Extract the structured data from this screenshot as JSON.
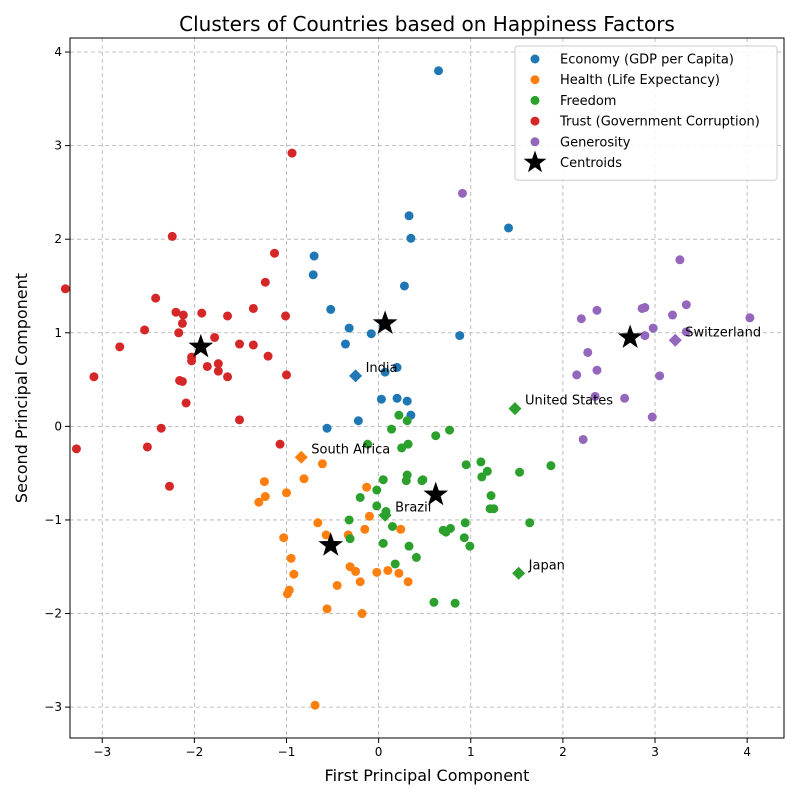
{
  "chart_data": {
    "type": "scatter",
    "title": "Clusters of Countries based on Happiness Factors",
    "xlabel": "First Principal Component",
    "ylabel": "Second Principal Component",
    "xlim": [
      -3.35,
      4.4
    ],
    "ylim": [
      -3.33,
      4.15
    ],
    "xticks": [
      -3,
      -2,
      -1,
      0,
      1,
      2,
      3,
      4
    ],
    "yticks": [
      -3,
      -2,
      -1,
      0,
      1,
      2,
      3,
      4
    ],
    "xtick_labels": [
      "−3",
      "−2",
      "−1",
      "0",
      "1",
      "2",
      "3",
      "4"
    ],
    "ytick_labels": [
      "−3",
      "−2",
      "−1",
      "0",
      "1",
      "2",
      "3",
      "4"
    ],
    "grid": true,
    "legend_position": "top-right",
    "series": [
      {
        "name": "Economy (GDP per Capita)",
        "color": "#1f77b4",
        "points": [
          [
            0.65,
            3.8
          ],
          [
            1.41,
            2.12
          ],
          [
            0.33,
            2.25
          ],
          [
            0.35,
            2.01
          ],
          [
            -0.7,
            1.82
          ],
          [
            -0.71,
            1.62
          ],
          [
            0.28,
            1.5
          ],
          [
            -0.52,
            1.25
          ],
          [
            -0.32,
            1.05
          ],
          [
            0.05,
            1.08
          ],
          [
            -0.08,
            0.99
          ],
          [
            0.88,
            0.97
          ],
          [
            -0.36,
            0.88
          ],
          [
            0.2,
            0.63
          ],
          [
            0.07,
            0.58
          ],
          [
            0.2,
            0.3
          ],
          [
            0.03,
            0.29
          ],
          [
            0.31,
            0.27
          ],
          [
            0.35,
            0.12
          ],
          [
            -0.22,
            0.06
          ],
          [
            -0.56,
            -0.02
          ]
        ]
      },
      {
        "name": "Health (Life Expectancy)",
        "color": "#ff7f0e",
        "points": [
          [
            -0.61,
            -0.4
          ],
          [
            -1.24,
            -0.59
          ],
          [
            -0.81,
            -0.56
          ],
          [
            -0.13,
            -0.65
          ],
          [
            -1.23,
            -0.75
          ],
          [
            -1.0,
            -0.71
          ],
          [
            -1.3,
            -0.81
          ],
          [
            -0.1,
            -0.96
          ],
          [
            -0.66,
            -1.03
          ],
          [
            -0.15,
            -1.1
          ],
          [
            0.24,
            -1.1
          ],
          [
            -0.57,
            -1.16
          ],
          [
            -0.33,
            -1.16
          ],
          [
            -1.03,
            -1.19
          ],
          [
            -0.95,
            -1.41
          ],
          [
            -0.31,
            -1.5
          ],
          [
            -0.25,
            -1.55
          ],
          [
            -0.02,
            -1.56
          ],
          [
            0.1,
            -1.54
          ],
          [
            0.22,
            -1.57
          ],
          [
            -0.92,
            -1.58
          ],
          [
            -0.2,
            -1.66
          ],
          [
            0.32,
            -1.66
          ],
          [
            -0.45,
            -1.7
          ],
          [
            -0.97,
            -1.75
          ],
          [
            -0.99,
            -1.79
          ],
          [
            -0.56,
            -1.95
          ],
          [
            -0.18,
            -2.0
          ],
          [
            -0.69,
            -2.98
          ]
        ]
      },
      {
        "name": "Freedom",
        "color": "#2ca02c",
        "points": [
          [
            0.22,
            0.12
          ],
          [
            0.31,
            0.06
          ],
          [
            0.14,
            -0.03
          ],
          [
            0.77,
            -0.04
          ],
          [
            0.62,
            -0.1
          ],
          [
            0.32,
            -0.19
          ],
          [
            -0.12,
            -0.19
          ],
          [
            0.25,
            -0.23
          ],
          [
            0.95,
            -0.41
          ],
          [
            1.11,
            -0.38
          ],
          [
            1.18,
            -0.48
          ],
          [
            1.87,
            -0.42
          ],
          [
            1.53,
            -0.49
          ],
          [
            0.31,
            -0.52
          ],
          [
            1.12,
            -0.54
          ],
          [
            0.05,
            -0.57
          ],
          [
            0.3,
            -0.58
          ],
          [
            0.47,
            -0.58
          ],
          [
            0.48,
            -0.57
          ],
          [
            -0.02,
            -0.68
          ],
          [
            1.22,
            -0.74
          ],
          [
            -0.2,
            -0.76
          ],
          [
            -0.02,
            -0.85
          ],
          [
            1.21,
            -0.88
          ],
          [
            1.25,
            -0.88
          ],
          [
            0.08,
            -0.91
          ],
          [
            -0.32,
            -1.0
          ],
          [
            0.94,
            -1.03
          ],
          [
            1.64,
            -1.03
          ],
          [
            0.15,
            -1.07
          ],
          [
            0.78,
            -1.09
          ],
          [
            0.7,
            -1.11
          ],
          [
            0.73,
            -1.13
          ],
          [
            -0.31,
            -1.2
          ],
          [
            0.93,
            -1.19
          ],
          [
            0.05,
            -1.25
          ],
          [
            0.99,
            -1.28
          ],
          [
            0.33,
            -1.28
          ],
          [
            0.41,
            -1.4
          ],
          [
            0.18,
            -1.47
          ],
          [
            0.6,
            -1.88
          ],
          [
            0.83,
            -1.89
          ]
        ]
      },
      {
        "name": "Trust (Government Corruption)",
        "color": "#d62728",
        "points": [
          [
            -0.94,
            2.92
          ],
          [
            -2.24,
            2.03
          ],
          [
            -1.13,
            1.85
          ],
          [
            -1.23,
            1.54
          ],
          [
            -3.4,
            1.47
          ],
          [
            -2.42,
            1.37
          ],
          [
            -1.36,
            1.26
          ],
          [
            -2.2,
            1.22
          ],
          [
            -1.92,
            1.21
          ],
          [
            -2.12,
            1.19
          ],
          [
            -1.64,
            1.18
          ],
          [
            -1.01,
            1.18
          ],
          [
            -2.13,
            1.1
          ],
          [
            -2.54,
            1.03
          ],
          [
            -2.17,
            1.0
          ],
          [
            -1.78,
            0.95
          ],
          [
            -1.51,
            0.88
          ],
          [
            -1.36,
            0.87
          ],
          [
            -2.81,
            0.85
          ],
          [
            -1.2,
            0.75
          ],
          [
            -2.03,
            0.74
          ],
          [
            -2.03,
            0.7
          ],
          [
            -1.74,
            0.67
          ],
          [
            -1.86,
            0.64
          ],
          [
            -1.74,
            0.59
          ],
          [
            -1.0,
            0.55
          ],
          [
            -1.64,
            0.53
          ],
          [
            -3.09,
            0.53
          ],
          [
            -2.16,
            0.49
          ],
          [
            -2.13,
            0.48
          ],
          [
            -2.09,
            0.25
          ],
          [
            -1.51,
            0.07
          ],
          [
            -2.36,
            -0.02
          ],
          [
            -1.07,
            -0.19
          ],
          [
            -2.51,
            -0.22
          ],
          [
            -3.28,
            -0.24
          ],
          [
            -2.27,
            -0.64
          ]
        ]
      },
      {
        "name": "Generosity",
        "color": "#9467bd",
        "points": [
          [
            0.91,
            2.49
          ],
          [
            3.27,
            1.78
          ],
          [
            3.34,
            1.3
          ],
          [
            2.86,
            1.26
          ],
          [
            2.89,
            1.27
          ],
          [
            2.37,
            1.24
          ],
          [
            3.19,
            1.19
          ],
          [
            4.03,
            1.16
          ],
          [
            2.2,
            1.15
          ],
          [
            2.98,
            1.05
          ],
          [
            3.34,
            1.01
          ],
          [
            2.89,
            0.97
          ],
          [
            2.27,
            0.79
          ],
          [
            2.37,
            0.6
          ],
          [
            2.15,
            0.55
          ],
          [
            3.05,
            0.54
          ],
          [
            2.35,
            0.32
          ],
          [
            2.67,
            0.3
          ],
          [
            2.97,
            0.1
          ],
          [
            2.22,
            -0.14
          ]
        ]
      }
    ],
    "centroids": {
      "name": "Centroids",
      "color": "#000000",
      "points": [
        [
          -1.93,
          0.85
        ],
        [
          0.07,
          1.1
        ],
        [
          2.73,
          0.95
        ],
        [
          0.62,
          -0.73
        ],
        [
          -0.52,
          -1.27
        ]
      ]
    },
    "highlighted_countries": [
      {
        "label": "India",
        "x": -0.25,
        "y": 0.54,
        "color": "#1f77b4"
      },
      {
        "label": "South Africa",
        "x": -0.84,
        "y": -0.33,
        "color": "#ff7f0e"
      },
      {
        "label": "Brazil",
        "x": 0.07,
        "y": -0.95,
        "color": "#2ca02c"
      },
      {
        "label": "United States",
        "x": 1.48,
        "y": 0.19,
        "color": "#2ca02c"
      },
      {
        "label": "Japan",
        "x": 1.52,
        "y": -1.57,
        "color": "#2ca02c"
      },
      {
        "label": "Switzerland",
        "x": 3.22,
        "y": 0.92,
        "color": "#9467bd"
      }
    ]
  }
}
